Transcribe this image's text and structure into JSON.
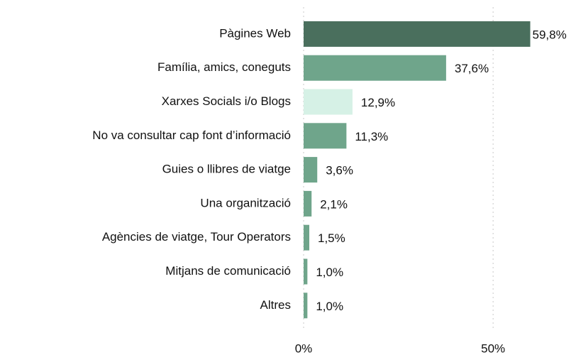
{
  "chart_data": {
    "type": "bar",
    "orientation": "horizontal",
    "categories": [
      "Pàgines Web",
      "Família, amics, coneguts",
      "Xarxes Socials i/o Blogs",
      "No va consultar cap font d’informació",
      "Guies o llibres de viatge",
      "Una organització",
      "Agències de viatge, Tour Operators",
      "Mitjans de comunicació",
      "Altres"
    ],
    "values": [
      59.8,
      37.6,
      12.9,
      11.3,
      3.6,
      2.1,
      1.5,
      1.0,
      1.0
    ],
    "value_labels": [
      "59,8%",
      "37,6%",
      "12,9%",
      "11,3%",
      "3,6%",
      "2,1%",
      "1,5%",
      "1,0%",
      "1,0%"
    ],
    "colors": [
      "#4a6f5d",
      "#6fa58b",
      "#d6f1e6",
      "#6fa58b",
      "#6fa58b",
      "#6fa58b",
      "#6fa58b",
      "#6fa58b",
      "#6fa58b"
    ],
    "xlim": [
      0,
      70
    ],
    "xticks": [
      {
        "value": 0,
        "label": "0%"
      },
      {
        "value": 50,
        "label": "50%"
      }
    ],
    "grid": true
  }
}
